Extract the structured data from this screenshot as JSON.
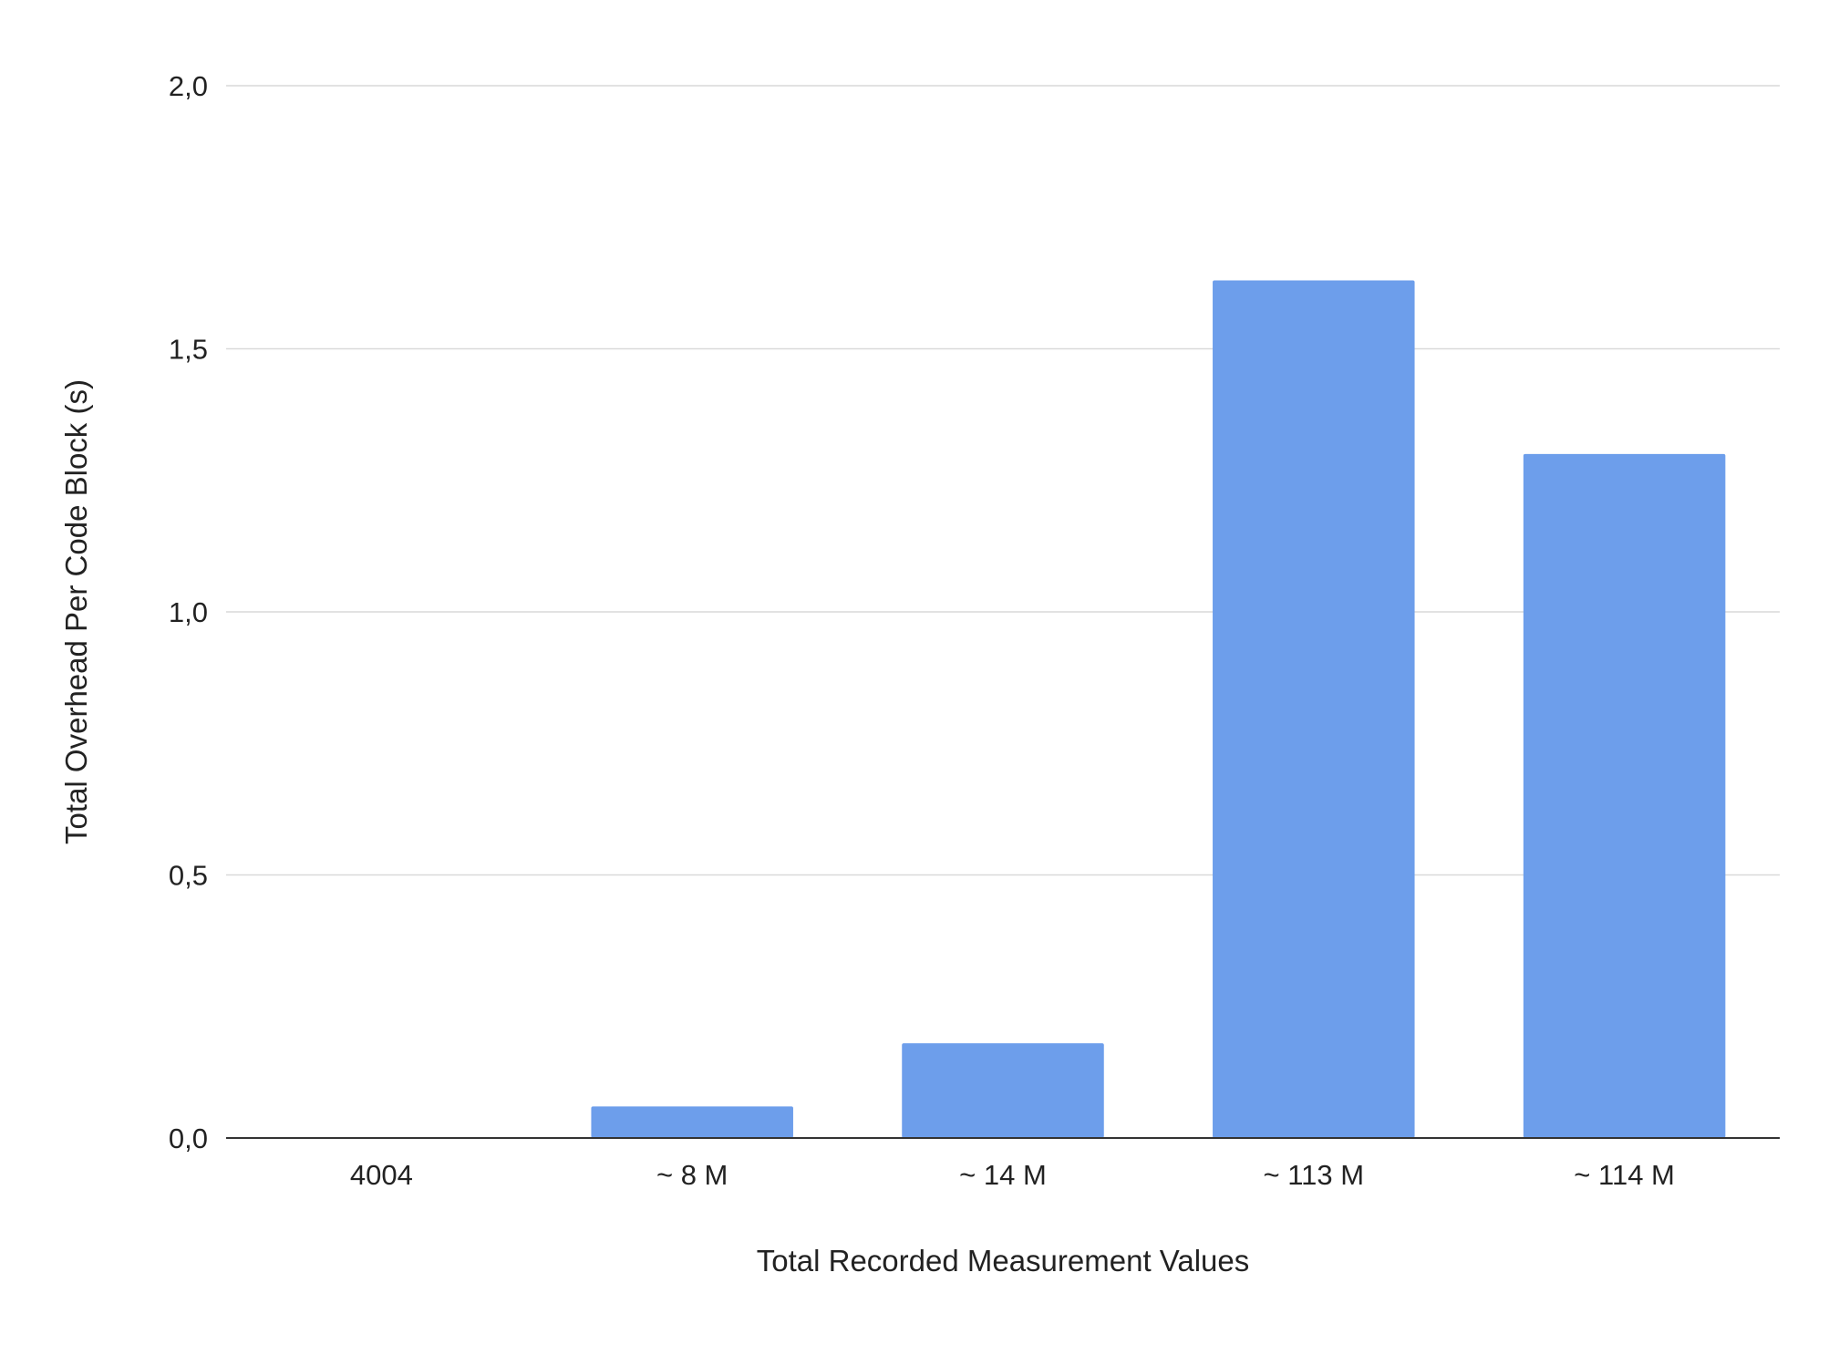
{
  "chart_data": {
    "type": "bar",
    "title": "",
    "xlabel": "Total Recorded Measurement Values",
    "ylabel": "Total Overhead Per Code Block  (s)",
    "categories": [
      "4004",
      "~ 8 M",
      "~ 14 M",
      "~ 113 M",
      "~ 114 M"
    ],
    "values": [
      0.0,
      0.06,
      0.18,
      1.63,
      1.3
    ],
    "ylim": [
      0,
      2.0
    ],
    "yticks": [
      0.0,
      0.5,
      1.0,
      1.5,
      2.0
    ],
    "ytick_labels": [
      "0,0",
      "0,5",
      "1,0",
      "1,5",
      "2,0"
    ],
    "grid": true,
    "legend": "none",
    "colors": {
      "bar": "#6d9eeb",
      "grid": "#d9d9d9",
      "axis": "#333333",
      "text": "#222222"
    }
  }
}
